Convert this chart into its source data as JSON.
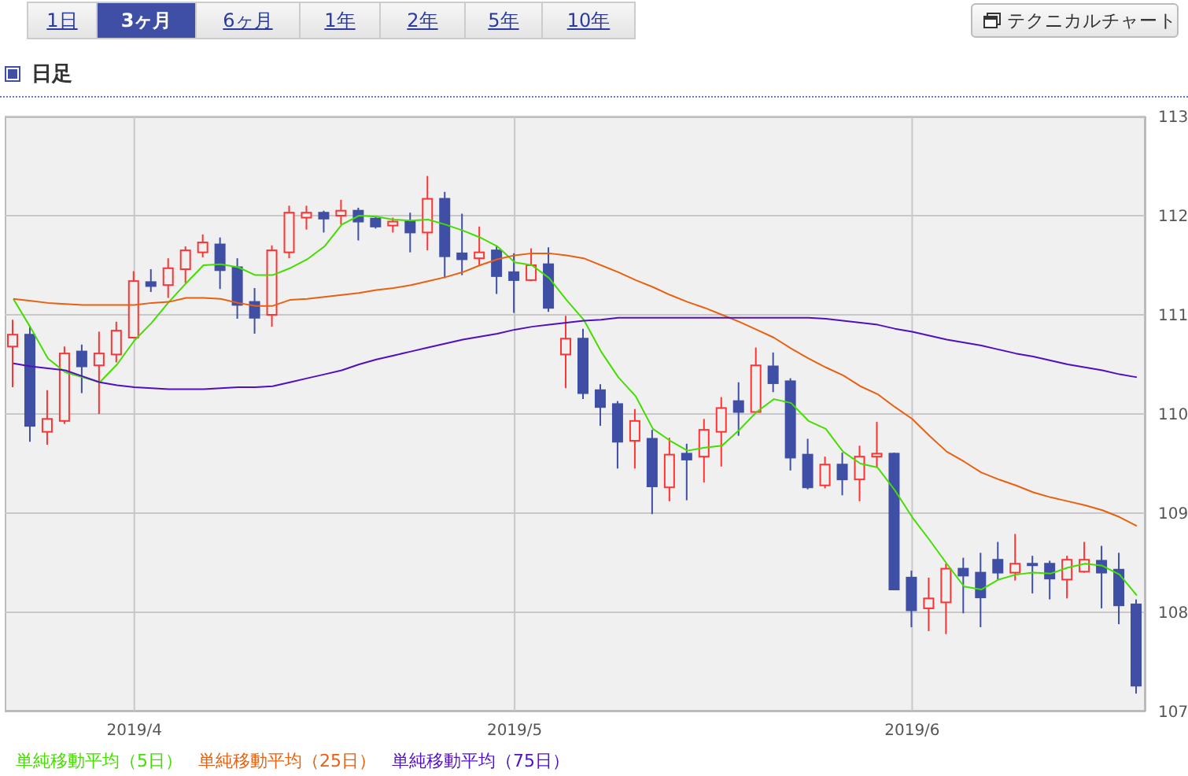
{
  "chart_data": {
    "type": "candlestick",
    "title": "日足",
    "annotations": [
      "1日",
      "3ヶ月",
      "6ヶ月",
      "1年",
      "2年",
      "5年",
      "10年",
      "テクニカルチャート"
    ],
    "categories": [
      null,
      null,
      null,
      null,
      null,
      null,
      null,
      "2019/4",
      null,
      null,
      null,
      null,
      null,
      null,
      null,
      null,
      null,
      null,
      null,
      null,
      null,
      null,
      null,
      null,
      null,
      null,
      null,
      null,
      null,
      "2019/5",
      null,
      null,
      null,
      null,
      null,
      null,
      null,
      null,
      null,
      null,
      null,
      null,
      null,
      null,
      null,
      null,
      null,
      null,
      null,
      null,
      null,
      null,
      "2019/6",
      null,
      null,
      null,
      null,
      null,
      null,
      null,
      null,
      null,
      null,
      null,
      null,
      null
    ],
    "ohlc": [
      [
        110.68,
        110.95,
        110.27,
        110.8
      ],
      [
        110.8,
        110.88,
        109.72,
        109.88
      ],
      [
        109.82,
        110.24,
        109.69,
        109.95
      ],
      [
        109.93,
        110.68,
        109.9,
        110.61
      ],
      [
        110.63,
        110.7,
        110.21,
        110.48
      ],
      [
        110.49,
        110.83,
        110.0,
        110.61
      ],
      [
        110.6,
        110.93,
        110.52,
        110.84
      ],
      [
        110.77,
        111.44,
        110.76,
        111.34
      ],
      [
        111.33,
        111.46,
        111.23,
        111.29
      ],
      [
        111.3,
        111.57,
        111.17,
        111.47
      ],
      [
        111.46,
        111.69,
        111.32,
        111.65
      ],
      [
        111.63,
        111.81,
        111.58,
        111.73
      ],
      [
        111.71,
        111.78,
        111.26,
        111.45
      ],
      [
        111.48,
        111.57,
        110.96,
        111.1
      ],
      [
        111.13,
        111.27,
        110.81,
        110.97
      ],
      [
        111.0,
        111.7,
        110.88,
        111.65
      ],
      [
        111.63,
        112.1,
        111.57,
        112.03
      ],
      [
        111.98,
        112.1,
        111.86,
        112.03
      ],
      [
        112.03,
        112.05,
        111.83,
        111.97
      ],
      [
        112.0,
        112.16,
        111.91,
        112.05
      ],
      [
        112.05,
        112.08,
        111.75,
        111.94
      ],
      [
        111.97,
        111.99,
        111.87,
        111.89
      ],
      [
        111.9,
        111.98,
        111.83,
        111.94
      ],
      [
        111.94,
        112.03,
        111.63,
        111.83
      ],
      [
        111.83,
        112.4,
        111.65,
        112.17
      ],
      [
        112.17,
        112.24,
        111.37,
        111.59
      ],
      [
        111.62,
        112.02,
        111.4,
        111.56
      ],
      [
        111.57,
        111.89,
        111.5,
        111.63
      ],
      [
        111.65,
        111.7,
        111.21,
        111.39
      ],
      [
        111.43,
        111.62,
        111.02,
        111.35
      ],
      [
        111.35,
        111.67,
        111.34,
        111.5
      ],
      [
        111.51,
        111.68,
        111.03,
        111.07
      ],
      [
        110.6,
        110.99,
        110.26,
        110.76
      ],
      [
        110.76,
        110.86,
        110.15,
        110.21
      ],
      [
        110.24,
        110.3,
        109.88,
        110.07
      ],
      [
        110.1,
        110.13,
        109.45,
        109.72
      ],
      [
        109.73,
        110.05,
        109.45,
        109.93
      ],
      [
        109.75,
        109.84,
        108.99,
        109.27
      ],
      [
        109.26,
        109.76,
        109.12,
        109.59
      ],
      [
        109.6,
        109.7,
        109.13,
        109.54
      ],
      [
        109.57,
        109.95,
        109.31,
        109.84
      ],
      [
        109.82,
        110.17,
        109.47,
        110.06
      ],
      [
        110.13,
        110.32,
        109.78,
        110.02
      ],
      [
        110.02,
        110.67,
        110.02,
        110.49
      ],
      [
        110.48,
        110.62,
        110.22,
        110.31
      ],
      [
        110.33,
        110.36,
        109.43,
        109.56
      ],
      [
        109.59,
        109.75,
        109.24,
        109.26
      ],
      [
        109.28,
        109.57,
        109.25,
        109.49
      ],
      [
        109.49,
        109.61,
        109.18,
        109.34
      ],
      [
        109.34,
        109.68,
        109.12,
        109.57
      ],
      [
        109.57,
        109.92,
        109.46,
        109.6
      ],
      [
        109.6,
        109.61,
        108.23,
        108.23
      ],
      [
        108.35,
        108.42,
        107.85,
        108.02
      ],
      [
        108.04,
        108.35,
        107.81,
        108.14
      ],
      [
        108.1,
        108.49,
        107.78,
        108.44
      ],
      [
        108.44,
        108.55,
        107.99,
        108.37
      ],
      [
        108.4,
        108.6,
        107.85,
        108.15
      ],
      [
        108.53,
        108.71,
        108.33,
        108.4
      ],
      [
        108.4,
        108.79,
        108.32,
        108.49
      ],
      [
        108.49,
        108.57,
        108.19,
        108.48
      ],
      [
        108.49,
        108.52,
        108.13,
        108.34
      ],
      [
        108.33,
        108.57,
        108.14,
        108.53
      ],
      [
        108.41,
        108.71,
        108.4,
        108.53
      ],
      [
        108.52,
        108.67,
        108.04,
        108.4
      ],
      [
        108.43,
        108.6,
        107.88,
        108.07
      ],
      [
        108.08,
        108.13,
        107.18,
        107.26
      ]
    ],
    "colors": [
      "#ff3333",
      "#3f4fa5",
      "#ff3333",
      "#ff3333",
      "#3f4fa5",
      "#ff3333",
      "#ff3333",
      "#ff3333",
      "#3f4fa5",
      "#ff3333",
      "#ff3333",
      "#ff3333",
      "#3f4fa5",
      "#3f4fa5",
      "#3f4fa5",
      "#ff3333",
      "#ff3333",
      "#ff3333",
      "#3f4fa5",
      "#ff3333",
      "#3f4fa5",
      "#3f4fa5",
      "#ff3333",
      "#3f4fa5",
      "#ff3333",
      "#3f4fa5",
      "#3f4fa5",
      "#ff3333",
      "#3f4fa5",
      "#3f4fa5",
      "#ff3333",
      "#3f4fa5",
      "#ff3333",
      "#3f4fa5",
      "#3f4fa5",
      "#3f4fa5",
      "#ff3333",
      "#3f4fa5",
      "#ff3333",
      "#3f4fa5",
      "#ff3333",
      "#ff3333",
      "#3f4fa5",
      "#ff3333",
      "#3f4fa5",
      "#3f4fa5",
      "#3f4fa5",
      "#ff3333",
      "#3f4fa5",
      "#ff3333",
      "#ff3333",
      "#3f4fa5",
      "#3f4fa5",
      "#ff3333",
      "#ff3333",
      "#3f4fa5",
      "#3f4fa5",
      "#3f4fa5",
      "#ff3333",
      "#3f4fa5",
      "#3f4fa5",
      "#ff3333",
      "#ff3333",
      "#3f4fa5",
      "#3f4fa5",
      "#3f4fa5"
    ],
    "series": [
      {
        "name": "単純移動平均（5日）",
        "type": "line",
        "color": "#44dd00",
        "values": [
          111.16,
          110.87,
          110.56,
          110.42,
          110.37,
          110.32,
          110.5,
          110.74,
          110.92,
          111.13,
          111.32,
          111.5,
          111.51,
          111.48,
          111.4,
          111.4,
          111.47,
          111.56,
          111.69,
          111.91,
          112.0,
          111.99,
          111.96,
          111.95,
          111.96,
          111.91,
          111.85,
          111.78,
          111.69,
          111.53,
          111.5,
          111.37,
          111.15,
          110.95,
          110.63,
          110.37,
          110.18,
          109.85,
          109.73,
          109.63,
          109.66,
          109.68,
          109.84,
          110.02,
          110.15,
          110.11,
          109.93,
          109.85,
          109.62,
          109.5,
          109.46,
          109.23,
          108.96,
          108.73,
          108.49,
          108.26,
          108.23,
          108.33,
          108.38,
          108.4,
          108.39,
          108.45,
          108.49,
          108.47,
          108.38,
          108.17
        ]
      },
      {
        "name": "単純移動平均（25日）",
        "type": "line",
        "color": "#e86010",
        "values": [
          111.16,
          111.14,
          111.12,
          111.11,
          111.1,
          111.1,
          111.1,
          111.1,
          111.12,
          111.13,
          111.17,
          111.17,
          111.16,
          111.12,
          111.09,
          111.09,
          111.15,
          111.16,
          111.18,
          111.2,
          111.22,
          111.25,
          111.27,
          111.3,
          111.34,
          111.38,
          111.43,
          111.5,
          111.56,
          111.6,
          111.62,
          111.62,
          111.6,
          111.57,
          111.5,
          111.43,
          111.35,
          111.28,
          111.2,
          111.13,
          111.07,
          111.0,
          110.93,
          110.85,
          110.77,
          110.66,
          110.56,
          110.47,
          110.39,
          110.28,
          110.2,
          110.07,
          109.95,
          109.78,
          109.62,
          109.52,
          109.41,
          109.34,
          109.28,
          109.21,
          109.16,
          109.12,
          109.08,
          109.03,
          108.96,
          108.87
        ]
      },
      {
        "name": "単純移動平均（75日）",
        "type": "line",
        "color": "#5010c0",
        "values": [
          110.51,
          110.48,
          110.46,
          110.44,
          110.38,
          110.32,
          110.29,
          110.27,
          110.26,
          110.25,
          110.25,
          110.25,
          110.26,
          110.27,
          110.27,
          110.28,
          110.32,
          110.36,
          110.4,
          110.44,
          110.5,
          110.55,
          110.59,
          110.63,
          110.67,
          110.71,
          110.75,
          110.78,
          110.81,
          110.85,
          110.88,
          110.9,
          110.92,
          110.94,
          110.95,
          110.97,
          110.97,
          110.97,
          110.97,
          110.97,
          110.97,
          110.97,
          110.97,
          110.97,
          110.97,
          110.97,
          110.97,
          110.96,
          110.94,
          110.92,
          110.9,
          110.86,
          110.83,
          110.79,
          110.75,
          110.72,
          110.69,
          110.65,
          110.61,
          110.58,
          110.54,
          110.5,
          110.47,
          110.44,
          110.4,
          110.37
        ]
      }
    ],
    "ylim": [
      107,
      113
    ],
    "yticks": [
      107,
      108,
      109,
      110,
      111,
      112,
      113
    ],
    "grid": true,
    "legend": "bottom"
  }
}
